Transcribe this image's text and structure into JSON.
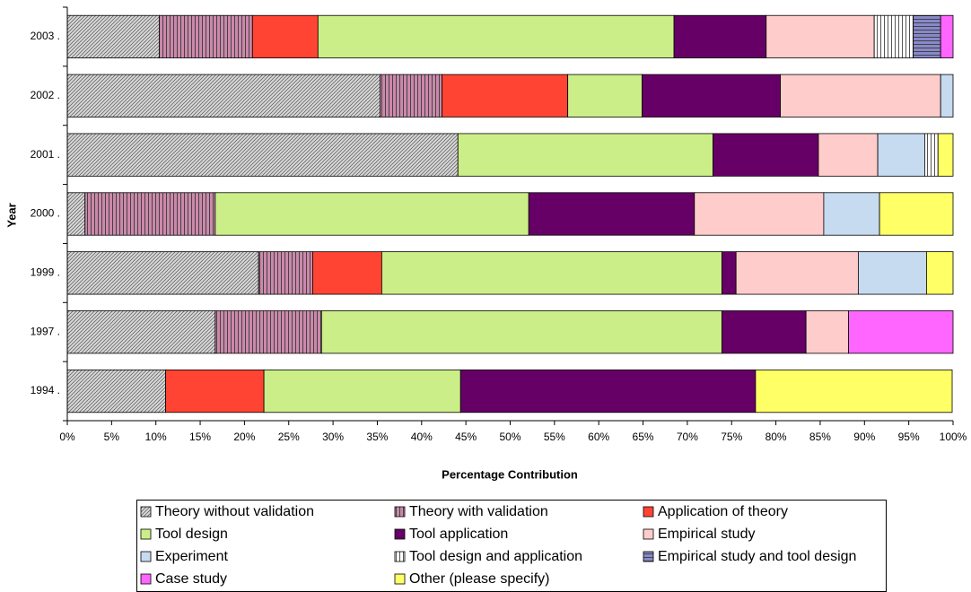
{
  "chart_data": {
    "type": "stacked_barh",
    "xlabel": "Percentage Contribution",
    "ylabel": "Year",
    "categories": [
      "2003 .",
      "2002 .",
      "2001 .",
      "2000 .",
      "1999 .",
      "1997 .",
      "1994 ."
    ],
    "xlim": [
      0,
      100
    ],
    "xticks": [
      {
        "value": 0,
        "label": "0%"
      },
      {
        "value": 5,
        "label": "5%"
      },
      {
        "value": 10,
        "label": "10%"
      },
      {
        "value": 15,
        "label": "15%"
      },
      {
        "value": 20,
        "label": "20%"
      },
      {
        "value": 25,
        "label": "25%"
      },
      {
        "value": 30,
        "label": "30%"
      },
      {
        "value": 35,
        "label": "35%"
      },
      {
        "value": 40,
        "label": "40%"
      },
      {
        "value": 45,
        "label": "45%"
      },
      {
        "value": 50,
        "label": "50%"
      },
      {
        "value": 55,
        "label": "55%"
      },
      {
        "value": 60,
        "label": "60%"
      },
      {
        "value": 65,
        "label": "65%"
      },
      {
        "value": 70,
        "label": "70%"
      },
      {
        "value": 75,
        "label": "75%"
      },
      {
        "value": 80,
        "label": "80%"
      },
      {
        "value": 85,
        "label": "85%"
      },
      {
        "value": 90,
        "label": "90%"
      },
      {
        "value": 95,
        "label": "95%"
      },
      {
        "value": 100,
        "label": "100%"
      }
    ],
    "series": [
      {
        "name": "Theory without validation",
        "color": "#d9d9d9",
        "hatch": "diagonal",
        "values": [
          10.4,
          35.3,
          44.1,
          2.0,
          21.6,
          16.7,
          11.1
        ]
      },
      {
        "name": "Theory with validation",
        "color": "#cc88aa",
        "hatch": "vertical",
        "values": [
          10.5,
          7.0,
          0,
          14.7,
          6.1,
          12.0,
          0
        ]
      },
      {
        "name": "Application of theory",
        "color": "#ff4433",
        "values": [
          7.4,
          14.2,
          0,
          0,
          7.8,
          0,
          11.1
        ]
      },
      {
        "name": "Tool design",
        "color": "#ccee88",
        "values": [
          40.2,
          8.4,
          28.8,
          35.4,
          38.4,
          45.2,
          22.2
        ]
      },
      {
        "name": "Tool application",
        "color": "#660066",
        "values": [
          10.4,
          15.6,
          11.9,
          18.7,
          1.6,
          9.5,
          33.3
        ]
      },
      {
        "name": "Empirical study",
        "color": "#ffcccc",
        "values": [
          12.2,
          18.1,
          6.7,
          14.6,
          13.8,
          4.8,
          0
        ]
      },
      {
        "name": "Experiment",
        "color": "#c6daf0",
        "values": [
          0,
          1.4,
          5.3,
          6.3,
          7.7,
          0,
          0
        ]
      },
      {
        "name": "Tool design and application",
        "color": "#ffffff",
        "hatch": "vertical",
        "values": [
          4.4,
          0,
          1.5,
          0,
          0,
          0,
          0
        ]
      },
      {
        "name": "Empirical study and tool design",
        "color": "#8888cc",
        "hatch": "horizontal",
        "values": [
          3.1,
          0,
          0,
          0,
          0,
          0,
          0
        ]
      },
      {
        "name": "Case study",
        "color": "#ff66ff",
        "values": [
          1.4,
          0,
          0,
          0,
          0,
          11.8,
          0
        ]
      },
      {
        "name": "Other (please specify)",
        "color": "#ffff66",
        "values": [
          0,
          0,
          1.7,
          8.3,
          3.0,
          0,
          22.2
        ]
      }
    ]
  }
}
